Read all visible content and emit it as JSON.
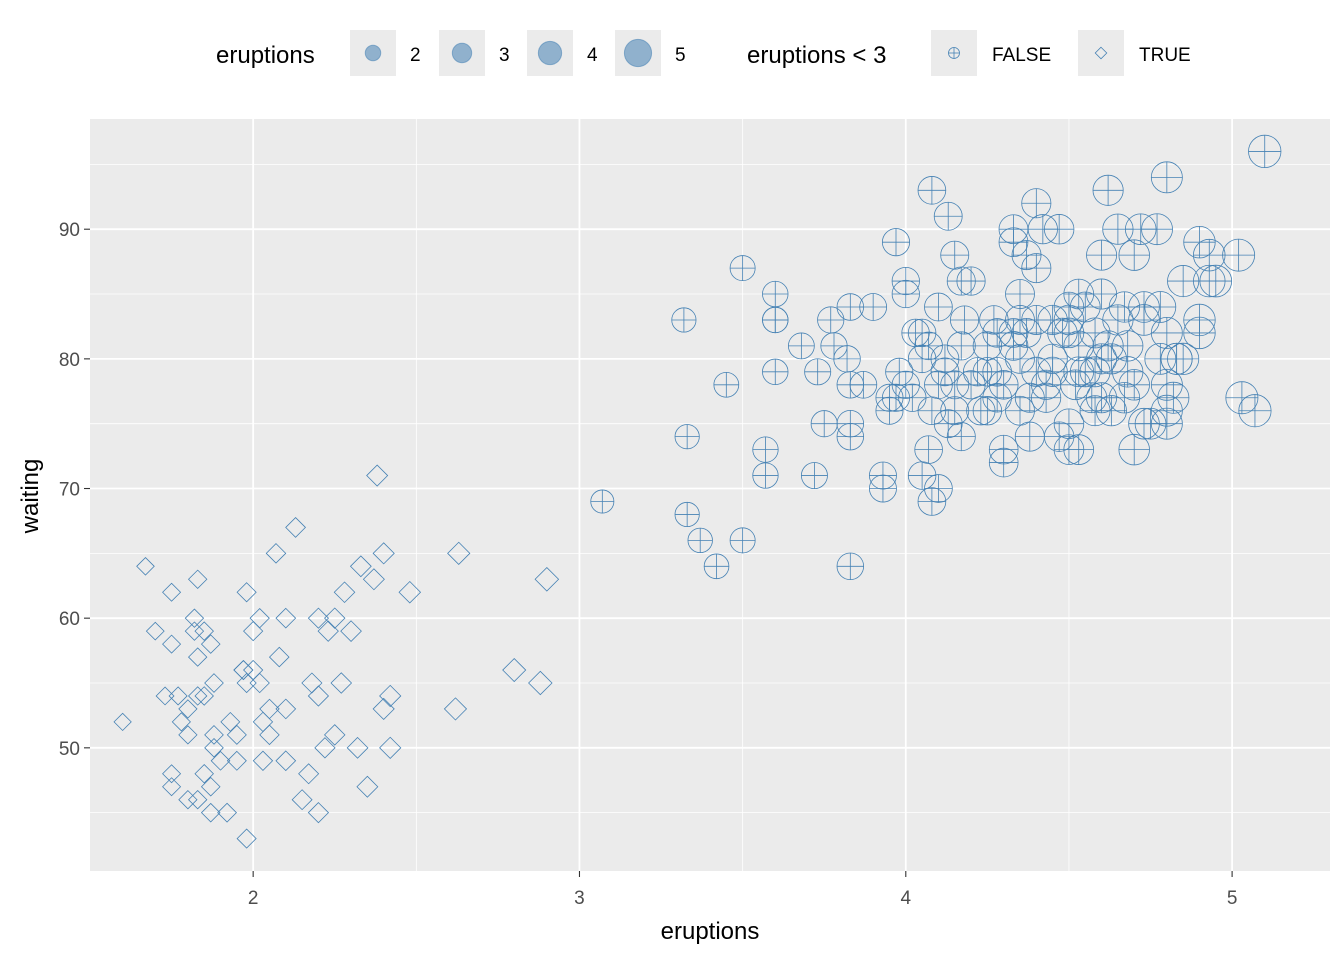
{
  "chart_data": {
    "type": "scatter",
    "title": "",
    "xlabel": "eruptions",
    "ylabel": "waiting",
    "xlim": [
      1.5,
      5.3
    ],
    "ylim": [
      40.5,
      98.5
    ],
    "x_ticks": [
      2,
      3,
      4,
      5
    ],
    "y_ticks": [
      50,
      60,
      70,
      80,
      90
    ],
    "grid": true,
    "point_color": "#4682b4",
    "panel_background": "#ebebeb",
    "legend_position": "top",
    "legend": {
      "size": {
        "title": "eruptions",
        "entries": [
          {
            "label": "2",
            "value": 2
          },
          {
            "label": "3",
            "value": 3
          },
          {
            "label": "4",
            "value": 4
          },
          {
            "label": "5",
            "value": 5
          }
        ]
      },
      "shape": {
        "title": "eruptions < 3",
        "entries": [
          {
            "label": "FALSE",
            "shape": "circle-plus"
          },
          {
            "label": "TRUE",
            "shape": "diamond"
          }
        ]
      }
    },
    "series": [
      {
        "name": "FALSE",
        "shape": "circle-plus",
        "points": [
          [
            3.07,
            69
          ],
          [
            3.32,
            83
          ],
          [
            3.33,
            74
          ],
          [
            3.33,
            68
          ],
          [
            3.37,
            66
          ],
          [
            3.42,
            64
          ],
          [
            3.45,
            78
          ],
          [
            3.5,
            87
          ],
          [
            3.5,
            66
          ],
          [
            3.57,
            73
          ],
          [
            3.57,
            71
          ],
          [
            3.6,
            85
          ],
          [
            3.6,
            83
          ],
          [
            3.6,
            83
          ],
          [
            3.6,
            79
          ],
          [
            3.68,
            81
          ],
          [
            3.72,
            71
          ],
          [
            3.73,
            79
          ],
          [
            3.75,
            75
          ],
          [
            3.77,
            83
          ],
          [
            3.78,
            81
          ],
          [
            3.82,
            80
          ],
          [
            3.83,
            84
          ],
          [
            3.83,
            78
          ],
          [
            3.83,
            75
          ],
          [
            3.83,
            74
          ],
          [
            3.83,
            64
          ],
          [
            3.87,
            78
          ],
          [
            3.9,
            84
          ],
          [
            3.93,
            71
          ],
          [
            3.93,
            70
          ],
          [
            3.95,
            77
          ],
          [
            3.95,
            76
          ],
          [
            3.97,
            89
          ],
          [
            3.98,
            79
          ],
          [
            4,
            86
          ],
          [
            4,
            85
          ],
          [
            4,
            78
          ],
          [
            4.02,
            77
          ],
          [
            4.03,
            82
          ],
          [
            4.05,
            80
          ],
          [
            4.07,
            81
          ],
          [
            4.07,
            73
          ],
          [
            4.08,
            93
          ],
          [
            4.08,
            76
          ],
          [
            4.08,
            69
          ],
          [
            4.1,
            84
          ],
          [
            4.1,
            78
          ],
          [
            4.1,
            70
          ],
          [
            4.12,
            80
          ],
          [
            4.13,
            91
          ],
          [
            4.13,
            75
          ],
          [
            4.15,
            88
          ],
          [
            4.15,
            78
          ],
          [
            4.15,
            76
          ],
          [
            4.17,
            86
          ],
          [
            4.17,
            81
          ],
          [
            4.17,
            74
          ],
          [
            4.2,
            86
          ],
          [
            4.22,
            79
          ],
          [
            4.25,
            81
          ],
          [
            4.25,
            76
          ],
          [
            4.27,
            83
          ],
          [
            4.28,
            79
          ],
          [
            4.28,
            77
          ],
          [
            4.3,
            78
          ],
          [
            4.3,
            73
          ],
          [
            4.3,
            72
          ],
          [
            4.33,
            90
          ],
          [
            4.33,
            89
          ],
          [
            4.33,
            82
          ],
          [
            4.35,
            85
          ],
          [
            4.35,
            80
          ],
          [
            4.35,
            76
          ],
          [
            4.37,
            88
          ],
          [
            4.37,
            82
          ],
          [
            4.38,
            77
          ],
          [
            4.38,
            74
          ],
          [
            4.4,
            92
          ],
          [
            4.4,
            87
          ],
          [
            4.4,
            79
          ],
          [
            4.42,
            90
          ],
          [
            4.43,
            78
          ],
          [
            4.43,
            77
          ],
          [
            4.45,
            83
          ],
          [
            4.45,
            80
          ],
          [
            4.47,
            90
          ],
          [
            4.47,
            74
          ],
          [
            4.48,
            82
          ],
          [
            4.5,
            84
          ],
          [
            4.5,
            83
          ],
          [
            4.5,
            73
          ],
          [
            4.5,
            75
          ],
          [
            4.52,
            78
          ],
          [
            4.53,
            85
          ],
          [
            4.53,
            79
          ],
          [
            4.53,
            73
          ],
          [
            4.55,
            84
          ],
          [
            4.57,
            77
          ],
          [
            4.58,
            79
          ],
          [
            4.58,
            76
          ],
          [
            4.6,
            88
          ],
          [
            4.6,
            85
          ],
          [
            4.6,
            77
          ],
          [
            4.62,
            93
          ],
          [
            4.62,
            81
          ],
          [
            4.63,
            80
          ],
          [
            4.65,
            90
          ],
          [
            4.67,
            84
          ],
          [
            4.68,
            81
          ],
          [
            4.7,
            88
          ],
          [
            4.7,
            78
          ],
          [
            4.7,
            73
          ],
          [
            4.72,
            90
          ],
          [
            4.73,
            84
          ],
          [
            4.73,
            75
          ],
          [
            4.75,
            75
          ],
          [
            4.77,
            90
          ],
          [
            4.78,
            84
          ],
          [
            4.8,
            94
          ],
          [
            4.8,
            82
          ],
          [
            4.8,
            78
          ],
          [
            4.8,
            76
          ],
          [
            4.8,
            75
          ],
          [
            4.82,
            77
          ],
          [
            4.83,
            80
          ],
          [
            4.85,
            86
          ],
          [
            4.85,
            80
          ],
          [
            4.9,
            89
          ],
          [
            4.9,
            83
          ],
          [
            4.9,
            82
          ],
          [
            4.93,
            88
          ],
          [
            4.95,
            86
          ],
          [
            5.02,
            88
          ],
          [
            5.03,
            77
          ],
          [
            5.07,
            76
          ],
          [
            5.1,
            96
          ],
          [
            4.12,
            79
          ],
          [
            4.23,
            76
          ],
          [
            4.4,
            83
          ],
          [
            4.5,
            82
          ],
          [
            4.58,
            82
          ],
          [
            4.65,
            83
          ],
          [
            4.2,
            78
          ],
          [
            4.28,
            82
          ],
          [
            4.35,
            83
          ],
          [
            4.53,
            81
          ],
          [
            4.63,
            76
          ],
          [
            4.67,
            77
          ],
          [
            4.73,
            83
          ],
          [
            4.83,
            80
          ],
          [
            3.97,
            77
          ],
          [
            4.05,
            82
          ],
          [
            4.18,
            83
          ],
          [
            4.25,
            79
          ],
          [
            4.33,
            81
          ],
          [
            4.45,
            79
          ],
          [
            4.55,
            79
          ],
          [
            4.6,
            80
          ],
          [
            4.68,
            79
          ],
          [
            4.78,
            80
          ],
          [
            4.93,
            86
          ],
          [
            4.05,
            71
          ]
        ]
      },
      {
        "name": "TRUE",
        "shape": "diamond",
        "points": [
          [
            1.6,
            52
          ],
          [
            1.67,
            64
          ],
          [
            1.7,
            59
          ],
          [
            1.73,
            54
          ],
          [
            1.75,
            62
          ],
          [
            1.75,
            58
          ],
          [
            1.75,
            48
          ],
          [
            1.75,
            47
          ],
          [
            1.77,
            54
          ],
          [
            1.78,
            52
          ],
          [
            1.8,
            51
          ],
          [
            1.8,
            53
          ],
          [
            1.8,
            46
          ],
          [
            1.82,
            60
          ],
          [
            1.82,
            59
          ],
          [
            1.83,
            57
          ],
          [
            1.83,
            54
          ],
          [
            1.83,
            46
          ],
          [
            1.83,
            63
          ],
          [
            1.85,
            59
          ],
          [
            1.85,
            54
          ],
          [
            1.85,
            48
          ],
          [
            1.87,
            58
          ],
          [
            1.87,
            45
          ],
          [
            1.87,
            47
          ],
          [
            1.88,
            55
          ],
          [
            1.88,
            51
          ],
          [
            1.88,
            50
          ],
          [
            1.92,
            45
          ],
          [
            1.93,
            52
          ],
          [
            1.95,
            51
          ],
          [
            1.97,
            56
          ],
          [
            1.98,
            55
          ],
          [
            1.98,
            62
          ],
          [
            2,
            59
          ],
          [
            2,
            56
          ],
          [
            2.02,
            60
          ],
          [
            2.02,
            55
          ],
          [
            2.03,
            52
          ],
          [
            2.03,
            49
          ],
          [
            2.05,
            53
          ],
          [
            2.05,
            51
          ],
          [
            2.07,
            65
          ],
          [
            2.08,
            57
          ],
          [
            2.1,
            60
          ],
          [
            2.1,
            53
          ],
          [
            2.1,
            49
          ],
          [
            2.13,
            67
          ],
          [
            2.15,
            46
          ],
          [
            2.17,
            48
          ],
          [
            2.18,
            55
          ],
          [
            2.2,
            60
          ],
          [
            2.2,
            54
          ],
          [
            2.2,
            45
          ],
          [
            2.22,
            50
          ],
          [
            2.23,
            59
          ],
          [
            2.25,
            60
          ],
          [
            2.25,
            51
          ],
          [
            2.27,
            55
          ],
          [
            2.28,
            62
          ],
          [
            2.3,
            59
          ],
          [
            2.32,
            50
          ],
          [
            2.33,
            64
          ],
          [
            2.35,
            47
          ],
          [
            2.37,
            63
          ],
          [
            2.38,
            71
          ],
          [
            2.4,
            65
          ],
          [
            2.4,
            53
          ],
          [
            2.42,
            54
          ],
          [
            2.42,
            50
          ],
          [
            2.48,
            62
          ],
          [
            2.62,
            53
          ],
          [
            2.63,
            65
          ],
          [
            2.8,
            56
          ],
          [
            2.88,
            55
          ],
          [
            2.9,
            63
          ],
          [
            1.95,
            49
          ],
          [
            1.98,
            43
          ],
          [
            1.9,
            49
          ],
          [
            1.97,
            56
          ]
        ]
      }
    ]
  }
}
